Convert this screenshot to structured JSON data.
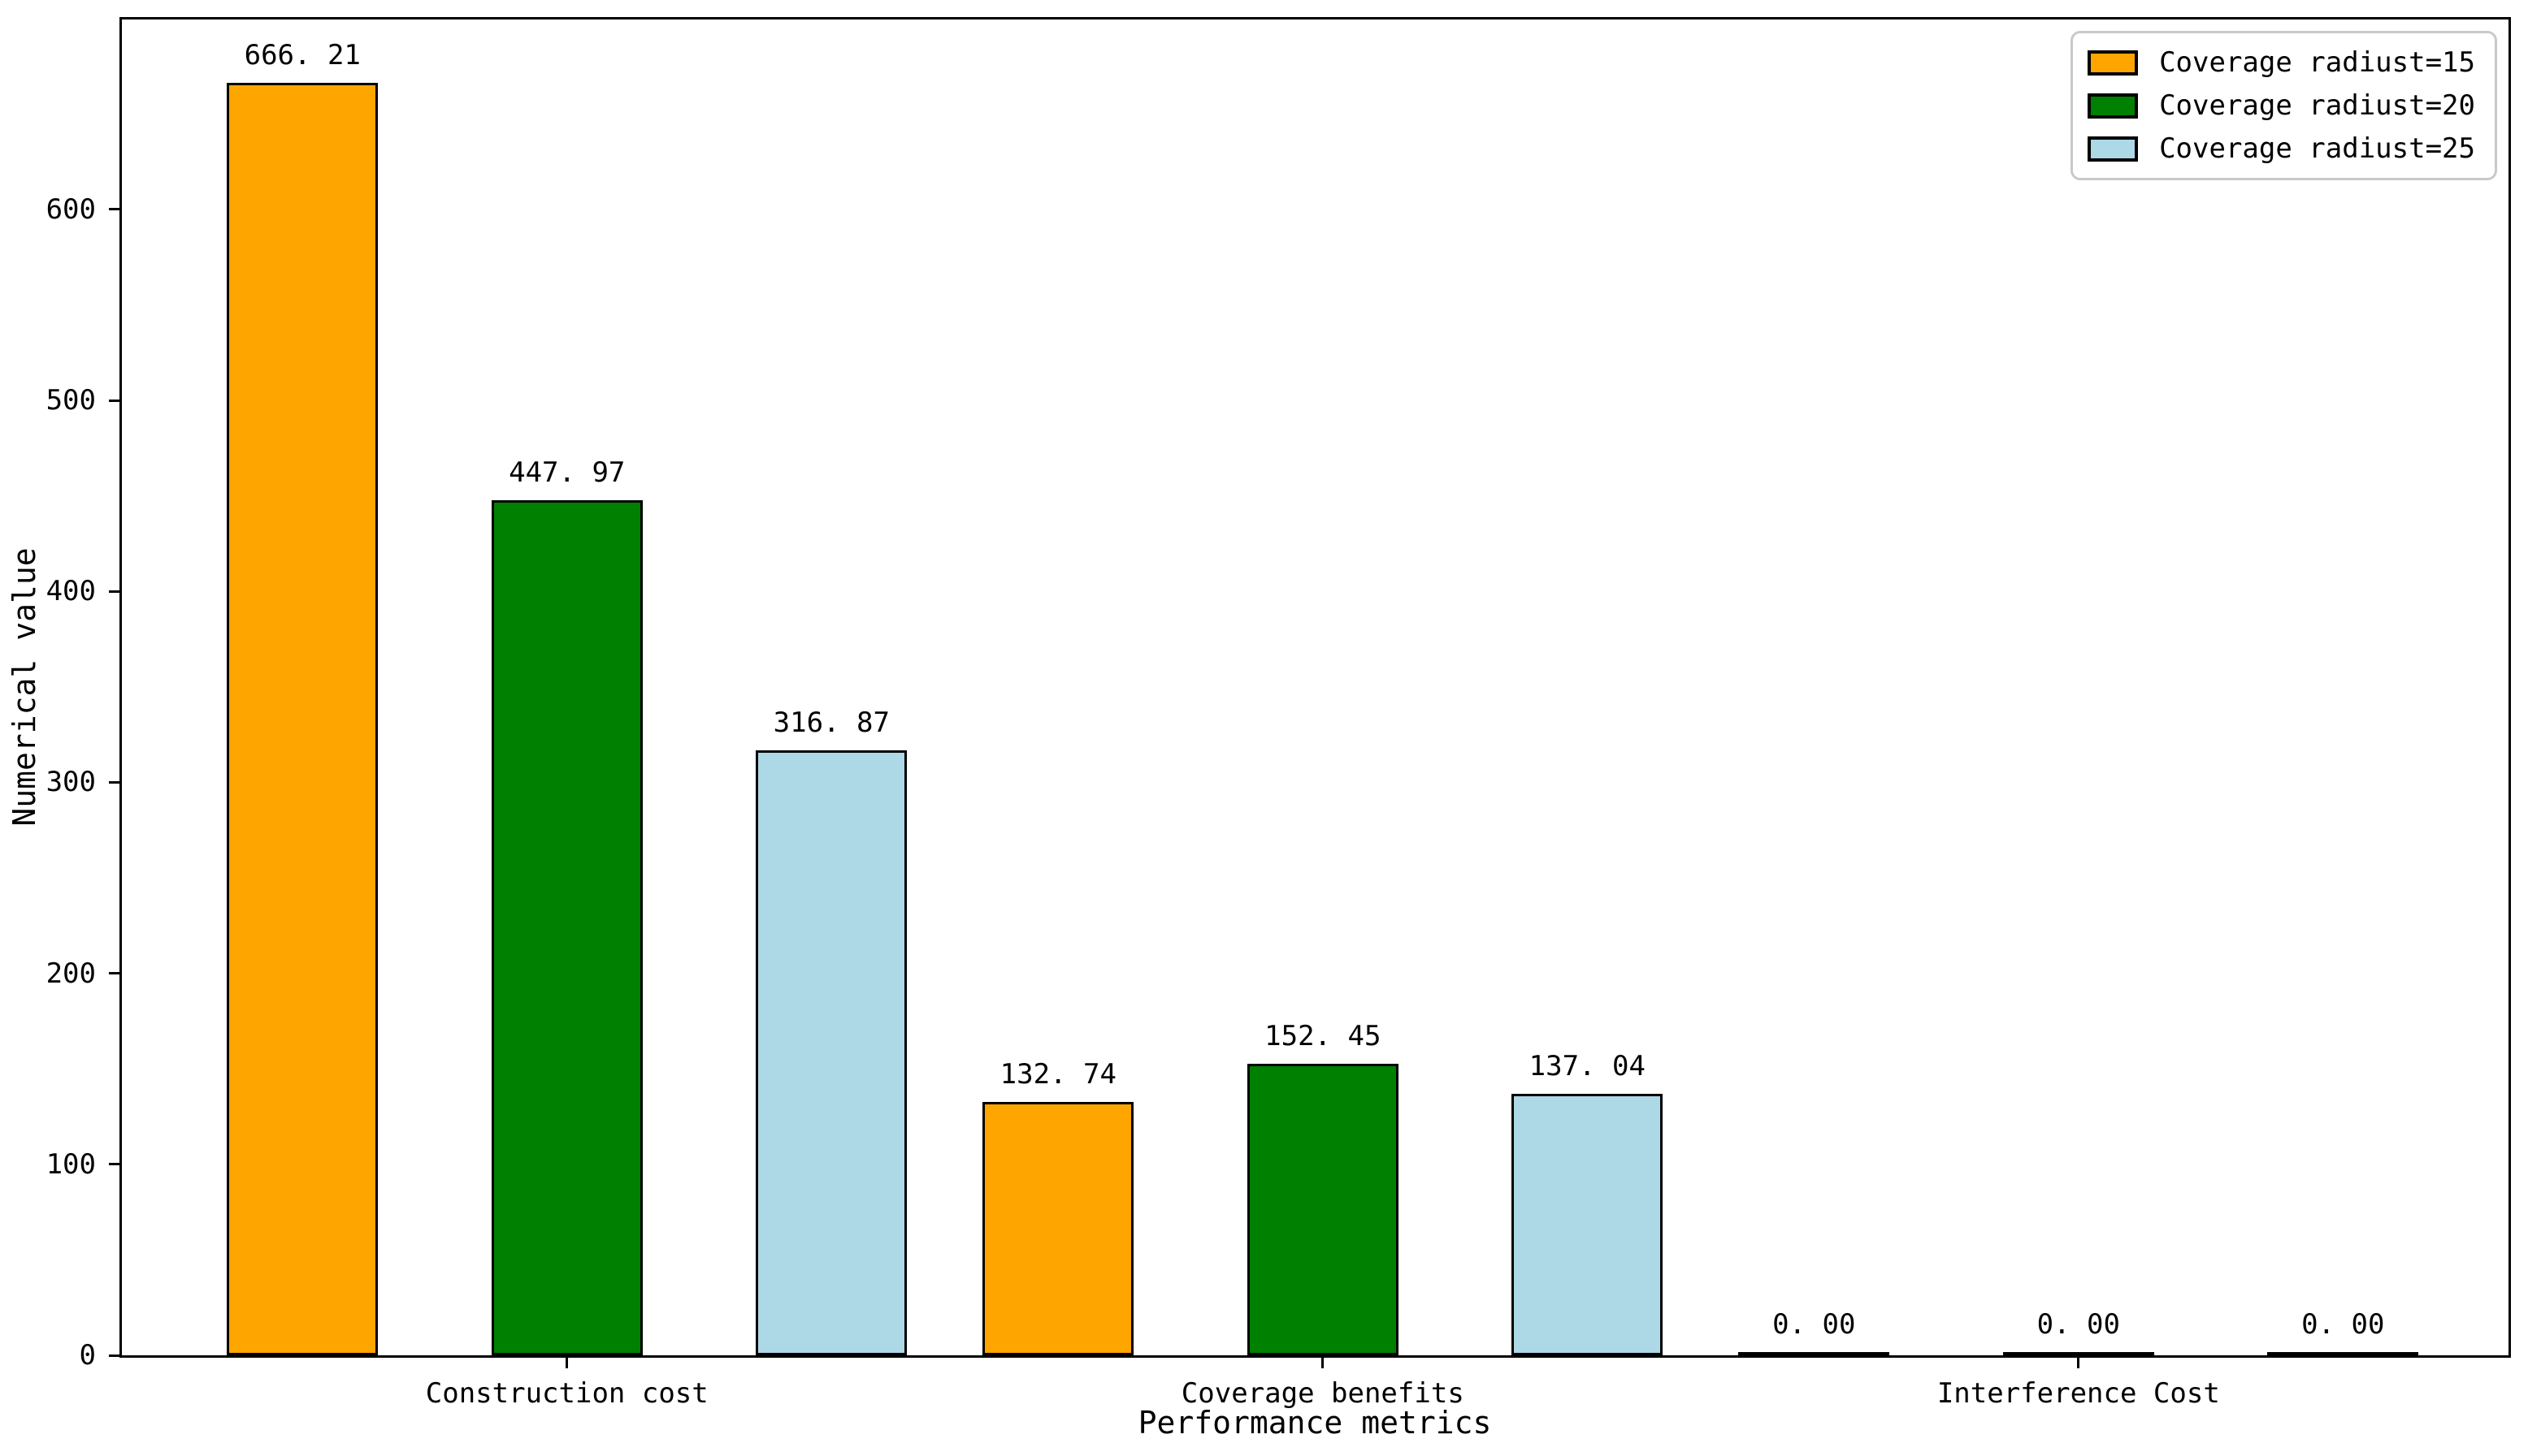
{
  "chart_data": {
    "type": "bar",
    "title": "",
    "xlabel": "Performance metrics",
    "ylabel": "Numerical value",
    "categories": [
      "Construction cost",
      "Coverage benefits",
      "Interference Cost"
    ],
    "series": [
      {
        "name": "Coverage radiust=15",
        "color": "#FFA500",
        "values": [
          666.21,
          132.74,
          0.0
        ]
      },
      {
        "name": "Coverage radiust=20",
        "color": "#008000",
        "values": [
          447.97,
          152.45,
          0.0
        ]
      },
      {
        "name": "Coverage radiust=25",
        "color": "#ADD8E6",
        "values": [
          316.87,
          137.04,
          0.0
        ]
      }
    ],
    "bar_edge_color": "#000000",
    "value_labels_shown": true,
    "value_label_decimals": 2,
    "yticks": [
      0,
      100,
      200,
      300,
      400,
      500,
      600
    ],
    "ylim": [
      0,
      699.5
    ],
    "xlim": [
      -0.589,
      2.569
    ],
    "bar_width": 0.2,
    "bar_offsets": [
      -0.35,
      0,
      0.35
    ],
    "grid": false,
    "legend_position": "upper right",
    "background_color": "#ffffff"
  }
}
